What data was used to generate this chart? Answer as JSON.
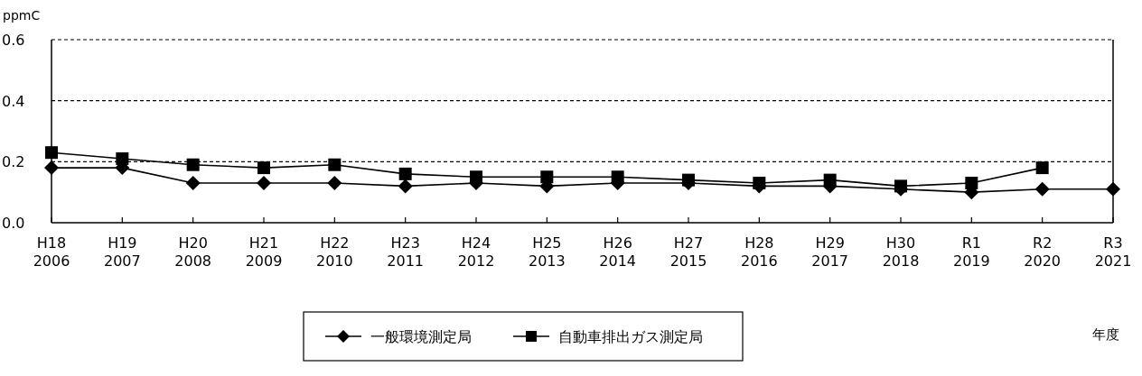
{
  "chart_data": {
    "type": "line",
    "ylabel": "ppmC",
    "xlabel": "年度",
    "categories": [
      "H18\n2006",
      "H19\n2007",
      "H20\n2008",
      "H21\n2009",
      "H22\n2010",
      "H23\n2011",
      "H24\n2012",
      "H25\n2013",
      "H26\n2014",
      "H27\n2015",
      "H28\n2016",
      "H29\n2017",
      "H30\n2018",
      "R1\n2019",
      "R2\n2020",
      "R3\n2021"
    ],
    "series": [
      {
        "name": "一般環境測定局",
        "color": "#000000",
        "marker": "diamond",
        "values": [
          0.18,
          0.18,
          0.13,
          0.13,
          0.13,
          0.12,
          0.13,
          0.12,
          0.13,
          0.13,
          0.12,
          0.12,
          0.11,
          0.1,
          0.11,
          0.11
        ]
      },
      {
        "name": "自動車排出ガス測定局",
        "color": "#000000",
        "marker": "square",
        "values": [
          0.23,
          0.21,
          0.19,
          0.18,
          0.19,
          0.16,
          0.15,
          0.15,
          0.15,
          0.14,
          0.13,
          0.14,
          0.12,
          0.13,
          0.18,
          null
        ]
      }
    ],
    "ylim": [
      0,
      0.6
    ],
    "yticks": [
      {
        "value": 0,
        "label": "0.0"
      },
      {
        "value": 0.2,
        "label": "0.2"
      },
      {
        "value": 0.4,
        "label": "0.4"
      },
      {
        "value": 0.6,
        "label": "0.6"
      }
    ],
    "grid": "y",
    "legend": "bottom",
    "line_style": "solid"
  }
}
